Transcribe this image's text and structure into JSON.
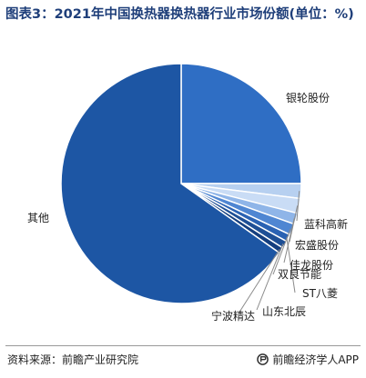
{
  "header": {
    "title": "图表3：2021年中国换热器换热器行业市场份额(单位：%)"
  },
  "chart_data": {
    "type": "pie",
    "title": "图表3：2021年中国换热器换热器行业市场份额(单位：%)",
    "unit": "%",
    "slices": [
      {
        "name": "银轮股份",
        "value": 25.0,
        "color": "#2f6ec4"
      },
      {
        "name": "蓝科高新",
        "value": 2.0,
        "color": "#b7d0f0"
      },
      {
        "name": "宏盛股份",
        "value": 2.0,
        "color": "#c9dcf5"
      },
      {
        "name": "佳龙股份",
        "value": 1.5,
        "color": "#8fb5e8"
      },
      {
        "name": "双良节能",
        "value": 1.5,
        "color": "#4f86d2"
      },
      {
        "name": "ST八菱",
        "value": 1.0,
        "color": "#2a62b3"
      },
      {
        "name": "山东北辰",
        "value": 1.0,
        "color": "#1e4f95"
      },
      {
        "name": "宁波精达",
        "value": 0.8,
        "color": "#153f7f"
      },
      {
        "name": "其他",
        "value": 65.2,
        "color": "#1d56a4"
      }
    ]
  },
  "footer": {
    "source": "资料来源：前瞻产业研究院",
    "brand": "前瞻经济学人APP"
  }
}
